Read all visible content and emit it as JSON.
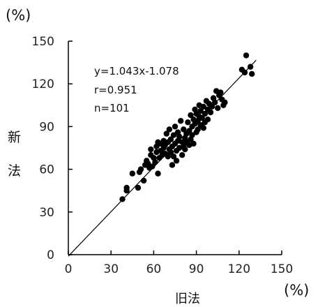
{
  "chart_data": {
    "type": "scatter",
    "x_unit": "(%)",
    "y_unit": "(%)",
    "xlabel": "旧法",
    "ylabel_lines": [
      "新",
      "法"
    ],
    "xlim": [
      0,
      150
    ],
    "ylim": [
      0,
      150
    ],
    "xticks": [
      0,
      30,
      60,
      90,
      120,
      150
    ],
    "yticks": [
      0,
      30,
      60,
      90,
      120,
      150
    ],
    "grid": false,
    "annotations": [
      "y=1.043x-1.078",
      "r=0.951",
      "n=101"
    ],
    "trendline": {
      "slope": 1.043,
      "intercept": -1.078,
      "x_range": [
        0,
        132
      ]
    },
    "series": [
      {
        "marker_color": "#000000",
        "points": [
          [
            38,
            39
          ],
          [
            41,
            45
          ],
          [
            41,
            47
          ],
          [
            45,
            57
          ],
          [
            49,
            47
          ],
          [
            50,
            58
          ],
          [
            51,
            60
          ],
          [
            53,
            52
          ],
          [
            54,
            63
          ],
          [
            55,
            66
          ],
          [
            56,
            64
          ],
          [
            57,
            61
          ],
          [
            58,
            70
          ],
          [
            58,
            74
          ],
          [
            59,
            62
          ],
          [
            60,
            68
          ],
          [
            61,
            65
          ],
          [
            62,
            72
          ],
          [
            62,
            76
          ],
          [
            63,
            57
          ],
          [
            63,
            79
          ],
          [
            64,
            68
          ],
          [
            65,
            73
          ],
          [
            65,
            78
          ],
          [
            66,
            70
          ],
          [
            67,
            75
          ],
          [
            67,
            80
          ],
          [
            68,
            71
          ],
          [
            68,
            77
          ],
          [
            69,
            85
          ],
          [
            70,
            69
          ],
          [
            70,
            79
          ],
          [
            71,
            74
          ],
          [
            71,
            88
          ],
          [
            72,
            72
          ],
          [
            72,
            81
          ],
          [
            73,
            63
          ],
          [
            73,
            76
          ],
          [
            74,
            69
          ],
          [
            74,
            84
          ],
          [
            75,
            78
          ],
          [
            75,
            90
          ],
          [
            76,
            66
          ],
          [
            76,
            73
          ],
          [
            77,
            80
          ],
          [
            77,
            86
          ],
          [
            78,
            75
          ],
          [
            78,
            83
          ],
          [
            79,
            94
          ],
          [
            80,
            70
          ],
          [
            80,
            79
          ],
          [
            81,
            76
          ],
          [
            81,
            88
          ],
          [
            82,
            82
          ],
          [
            82,
            74
          ],
          [
            83,
            85
          ],
          [
            83,
            79
          ],
          [
            84,
            93
          ],
          [
            85,
            77
          ],
          [
            85,
            87
          ],
          [
            86,
            81
          ],
          [
            86,
            98
          ],
          [
            87,
            90
          ],
          [
            87,
            84
          ],
          [
            88,
            78
          ],
          [
            88,
            95
          ],
          [
            89,
            92
          ],
          [
            89,
            102
          ],
          [
            90,
            86
          ],
          [
            90,
            99
          ],
          [
            91,
            94
          ],
          [
            91,
            88
          ],
          [
            92,
            105
          ],
          [
            92,
            97
          ],
          [
            93,
            91
          ],
          [
            93,
            101
          ],
          [
            94,
            96
          ],
          [
            95,
            89
          ],
          [
            95,
            104
          ],
          [
            96,
            99
          ],
          [
            96,
            93
          ],
          [
            97,
            108
          ],
          [
            98,
            102
          ],
          [
            98,
            95
          ],
          [
            99,
            106
          ],
          [
            100,
            100
          ],
          [
            101,
            104
          ],
          [
            102,
            110
          ],
          [
            103,
            107
          ],
          [
            104,
            115
          ],
          [
            105,
            103
          ],
          [
            106,
            112
          ],
          [
            107,
            114
          ],
          [
            108,
            109
          ],
          [
            109,
            105
          ],
          [
            110,
            107
          ],
          [
            122,
            130
          ],
          [
            124,
            128
          ],
          [
            125,
            140
          ],
          [
            128,
            132
          ],
          [
            129,
            127
          ]
        ]
      }
    ]
  }
}
